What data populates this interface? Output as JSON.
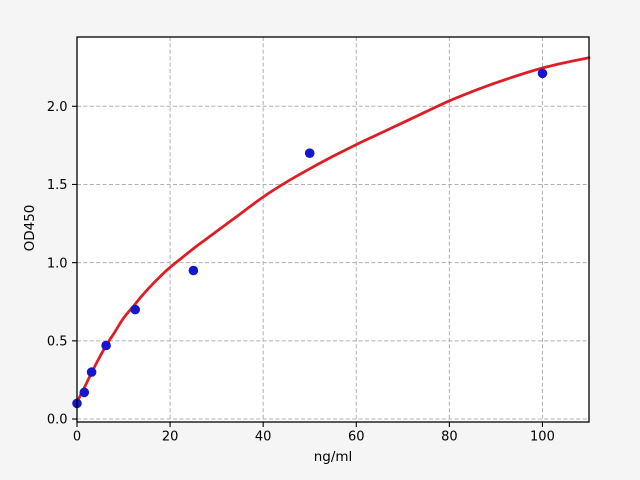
{
  "chart_data": {
    "type": "scatter",
    "title": "",
    "xlabel": "ng/ml",
    "ylabel": "OD450",
    "xlim": [
      0,
      110
    ],
    "ylim": [
      -0.019,
      2.443
    ],
    "x_ticks": [
      0,
      20,
      40,
      60,
      80,
      100
    ],
    "x_tick_labels": [
      "0",
      "20",
      "40",
      "60",
      "80",
      "100"
    ],
    "y_ticks": [
      0,
      0.5,
      1.0,
      1.5,
      2.0
    ],
    "y_tick_labels": [
      "0.0",
      "0.5",
      "1.0",
      "1.5",
      "2.0"
    ],
    "grid": true,
    "grid_style": "dashed",
    "legend": "none",
    "series": [
      {
        "name": "fit-curve",
        "type": "line",
        "color": "#dc1f26",
        "x": [
          0,
          0.8,
          1.56,
          2.3,
          3.13,
          4.5,
          6.25,
          8,
          10,
          12.5,
          14,
          16,
          18,
          20,
          22.5,
          25,
          27.5,
          30,
          35,
          40,
          45,
          50,
          55,
          60,
          65,
          70,
          75,
          80,
          85,
          90,
          95,
          100,
          105,
          110
        ],
        "y": [
          0.11,
          0.155,
          0.2,
          0.245,
          0.295,
          0.375,
          0.47,
          0.55,
          0.645,
          0.735,
          0.79,
          0.855,
          0.915,
          0.97,
          1.03,
          1.09,
          1.145,
          1.2,
          1.31,
          1.42,
          1.515,
          1.6,
          1.68,
          1.755,
          1.825,
          1.895,
          1.965,
          2.035,
          2.095,
          2.15,
          2.2,
          2.245,
          2.28,
          2.31
        ]
      },
      {
        "name": "standard-points",
        "type": "scatter",
        "color": "#1616cc",
        "marker": "circle",
        "x": [
          0,
          1.56,
          3.13,
          6.25,
          12.5,
          25,
          50,
          100
        ],
        "y": [
          0.1,
          0.17,
          0.3,
          0.47,
          0.7,
          0.95,
          1.7,
          2.21
        ]
      }
    ]
  },
  "colors": {
    "figure_background": "#f5f5f5",
    "plot_background": "#ffffff",
    "grid": "#b0b0b0",
    "axis": "#000000"
  }
}
